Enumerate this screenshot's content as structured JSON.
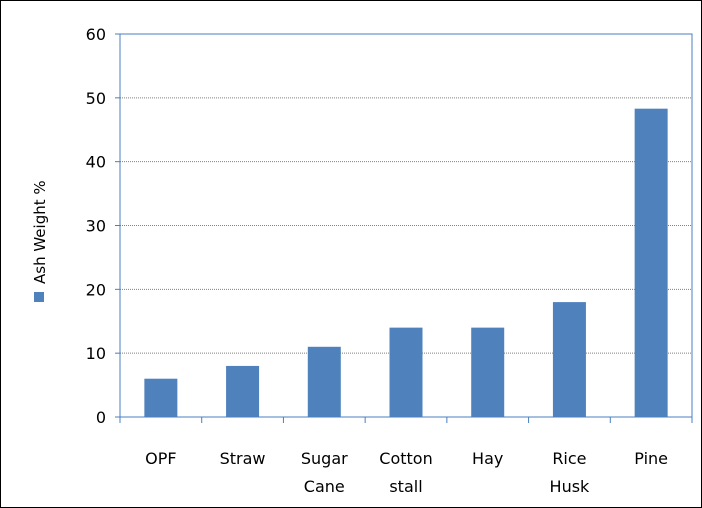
{
  "chart_data": {
    "type": "bar",
    "categories": [
      [
        "OPF"
      ],
      [
        "Straw"
      ],
      [
        "Sugar",
        "Cane"
      ],
      [
        "Cotton",
        "stall"
      ],
      [
        "Hay"
      ],
      [
        "Rice",
        "Husk"
      ],
      [
        "Pine"
      ]
    ],
    "series": [
      {
        "name": "Ash Weight %",
        "values": [
          6,
          8,
          11,
          14,
          14,
          18,
          48.3
        ]
      }
    ],
    "ylim": [
      0,
      60
    ],
    "yticks": [
      "0",
      "10",
      "20",
      "30",
      "40",
      "50",
      "60"
    ],
    "grid": true,
    "legend": "left",
    "colors": {
      "bar": "#4f81bd",
      "axis": "#4a7fc1",
      "grid": "#808080"
    }
  }
}
